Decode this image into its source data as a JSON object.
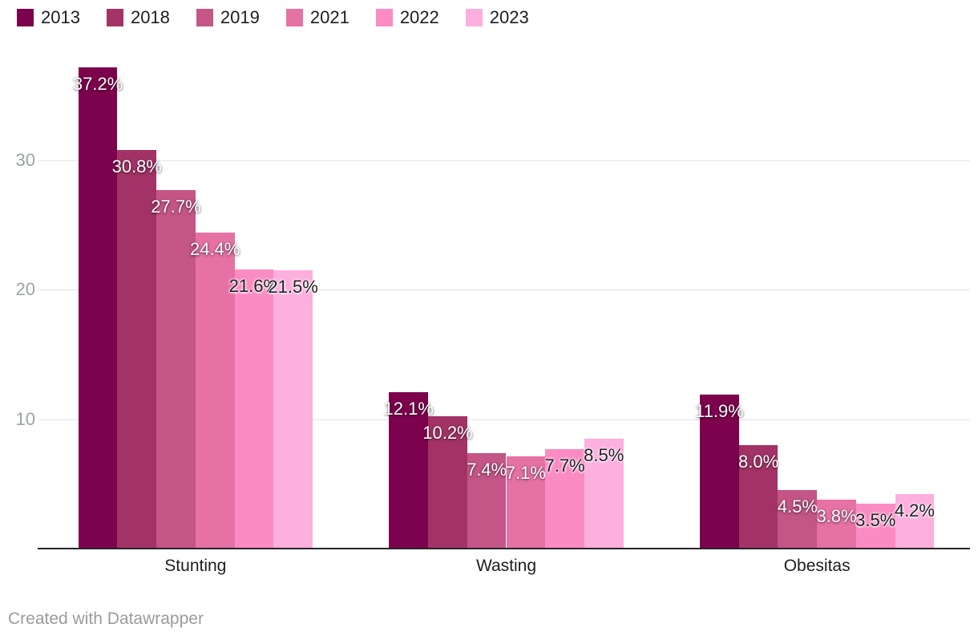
{
  "chart_data": {
    "type": "bar",
    "title": "",
    "xlabel": "",
    "ylabel": "",
    "categories": [
      "Stunting",
      "Wasting",
      "Obesitas"
    ],
    "series": [
      {
        "name": "2013",
        "color": "#7d024d",
        "label_style": "light",
        "values": [
          37.2,
          12.1,
          11.9
        ],
        "labels": [
          "37.2%",
          "12.1%",
          "11.9%"
        ]
      },
      {
        "name": "2018",
        "color": "#a33366",
        "label_style": "light",
        "values": [
          30.8,
          10.2,
          8.0
        ],
        "labels": [
          "30.8%",
          "10.2%",
          "8.0%"
        ]
      },
      {
        "name": "2019",
        "color": "#c45587",
        "label_style": "light",
        "values": [
          27.7,
          7.4,
          4.5
        ],
        "labels": [
          "27.7%",
          "7.4%",
          "4.5%"
        ]
      },
      {
        "name": "2021",
        "color": "#e671a5",
        "label_style": "light",
        "values": [
          24.4,
          7.1,
          3.8
        ],
        "labels": [
          "24.4%",
          "7.1%",
          "3.8%"
        ]
      },
      {
        "name": "2022",
        "color": "#fb8cc3",
        "label_style": "dark",
        "values": [
          21.6,
          7.7,
          3.5
        ],
        "labels": [
          "21.6%",
          "7.7%",
          "3.5%"
        ]
      },
      {
        "name": "2023",
        "color": "#fdafde",
        "label_style": "dark",
        "values": [
          21.5,
          8.5,
          4.2
        ],
        "labels": [
          "21.5%",
          "8.5%",
          "4.2%"
        ]
      }
    ],
    "value_suffix": "%",
    "y_ticks": [
      10,
      20,
      30
    ],
    "ylim": [
      0,
      40
    ],
    "grid": true,
    "legend_position": "top-left"
  },
  "colors": {
    "grid_line": "#e4e4e4",
    "axis_baseline": "#26262a",
    "tick_label": "#9da2a6",
    "category_label": "#1d1d1f",
    "credit_text": "#9b9b9b"
  },
  "footer": {
    "credit": "Created with Datawrapper"
  }
}
